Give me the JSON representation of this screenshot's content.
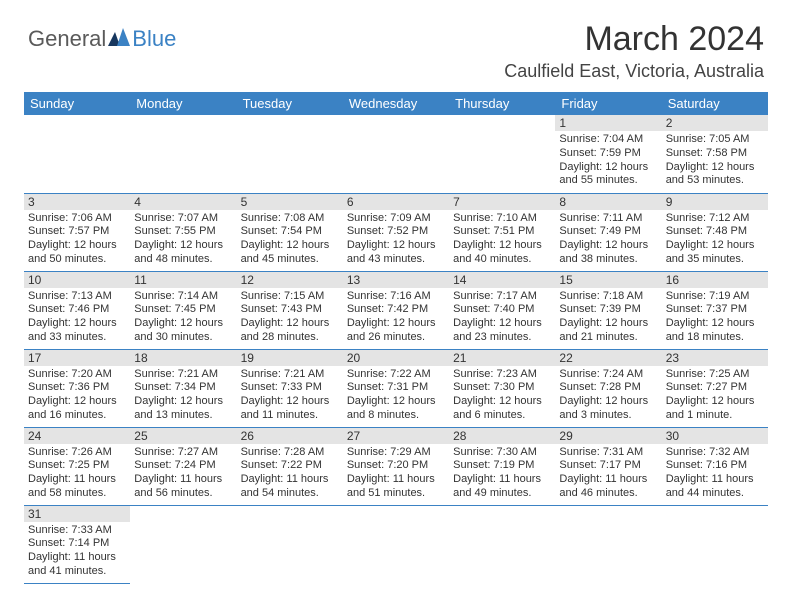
{
  "logo": {
    "part1": "General",
    "part2": "Blue"
  },
  "title": "March 2024",
  "location": "Caulfield East, Victoria, Australia",
  "colors": {
    "header_bg": "#3b82c4",
    "header_text": "#ffffff",
    "daynum_bg": "#e4e4e4",
    "row_border": "#3b82c4",
    "text": "#333333",
    "logo_general": "#5a5a5a",
    "logo_blue": "#3b82c4"
  },
  "day_headers": [
    "Sunday",
    "Monday",
    "Tuesday",
    "Wednesday",
    "Thursday",
    "Friday",
    "Saturday"
  ],
  "weeks": [
    [
      {
        "blank": true
      },
      {
        "blank": true
      },
      {
        "blank": true
      },
      {
        "blank": true
      },
      {
        "blank": true
      },
      {
        "num": "1",
        "sunrise": "Sunrise: 7:04 AM",
        "sunset": "Sunset: 7:59 PM",
        "daylight": "Daylight: 12 hours and 55 minutes."
      },
      {
        "num": "2",
        "sunrise": "Sunrise: 7:05 AM",
        "sunset": "Sunset: 7:58 PM",
        "daylight": "Daylight: 12 hours and 53 minutes."
      }
    ],
    [
      {
        "num": "3",
        "sunrise": "Sunrise: 7:06 AM",
        "sunset": "Sunset: 7:57 PM",
        "daylight": "Daylight: 12 hours and 50 minutes."
      },
      {
        "num": "4",
        "sunrise": "Sunrise: 7:07 AM",
        "sunset": "Sunset: 7:55 PM",
        "daylight": "Daylight: 12 hours and 48 minutes."
      },
      {
        "num": "5",
        "sunrise": "Sunrise: 7:08 AM",
        "sunset": "Sunset: 7:54 PM",
        "daylight": "Daylight: 12 hours and 45 minutes."
      },
      {
        "num": "6",
        "sunrise": "Sunrise: 7:09 AM",
        "sunset": "Sunset: 7:52 PM",
        "daylight": "Daylight: 12 hours and 43 minutes."
      },
      {
        "num": "7",
        "sunrise": "Sunrise: 7:10 AM",
        "sunset": "Sunset: 7:51 PM",
        "daylight": "Daylight: 12 hours and 40 minutes."
      },
      {
        "num": "8",
        "sunrise": "Sunrise: 7:11 AM",
        "sunset": "Sunset: 7:49 PM",
        "daylight": "Daylight: 12 hours and 38 minutes."
      },
      {
        "num": "9",
        "sunrise": "Sunrise: 7:12 AM",
        "sunset": "Sunset: 7:48 PM",
        "daylight": "Daylight: 12 hours and 35 minutes."
      }
    ],
    [
      {
        "num": "10",
        "sunrise": "Sunrise: 7:13 AM",
        "sunset": "Sunset: 7:46 PM",
        "daylight": "Daylight: 12 hours and 33 minutes."
      },
      {
        "num": "11",
        "sunrise": "Sunrise: 7:14 AM",
        "sunset": "Sunset: 7:45 PM",
        "daylight": "Daylight: 12 hours and 30 minutes."
      },
      {
        "num": "12",
        "sunrise": "Sunrise: 7:15 AM",
        "sunset": "Sunset: 7:43 PM",
        "daylight": "Daylight: 12 hours and 28 minutes."
      },
      {
        "num": "13",
        "sunrise": "Sunrise: 7:16 AM",
        "sunset": "Sunset: 7:42 PM",
        "daylight": "Daylight: 12 hours and 26 minutes."
      },
      {
        "num": "14",
        "sunrise": "Sunrise: 7:17 AM",
        "sunset": "Sunset: 7:40 PM",
        "daylight": "Daylight: 12 hours and 23 minutes."
      },
      {
        "num": "15",
        "sunrise": "Sunrise: 7:18 AM",
        "sunset": "Sunset: 7:39 PM",
        "daylight": "Daylight: 12 hours and 21 minutes."
      },
      {
        "num": "16",
        "sunrise": "Sunrise: 7:19 AM",
        "sunset": "Sunset: 7:37 PM",
        "daylight": "Daylight: 12 hours and 18 minutes."
      }
    ],
    [
      {
        "num": "17",
        "sunrise": "Sunrise: 7:20 AM",
        "sunset": "Sunset: 7:36 PM",
        "daylight": "Daylight: 12 hours and 16 minutes."
      },
      {
        "num": "18",
        "sunrise": "Sunrise: 7:21 AM",
        "sunset": "Sunset: 7:34 PM",
        "daylight": "Daylight: 12 hours and 13 minutes."
      },
      {
        "num": "19",
        "sunrise": "Sunrise: 7:21 AM",
        "sunset": "Sunset: 7:33 PM",
        "daylight": "Daylight: 12 hours and 11 minutes."
      },
      {
        "num": "20",
        "sunrise": "Sunrise: 7:22 AM",
        "sunset": "Sunset: 7:31 PM",
        "daylight": "Daylight: 12 hours and 8 minutes."
      },
      {
        "num": "21",
        "sunrise": "Sunrise: 7:23 AM",
        "sunset": "Sunset: 7:30 PM",
        "daylight": "Daylight: 12 hours and 6 minutes."
      },
      {
        "num": "22",
        "sunrise": "Sunrise: 7:24 AM",
        "sunset": "Sunset: 7:28 PM",
        "daylight": "Daylight: 12 hours and 3 minutes."
      },
      {
        "num": "23",
        "sunrise": "Sunrise: 7:25 AM",
        "sunset": "Sunset: 7:27 PM",
        "daylight": "Daylight: 12 hours and 1 minute."
      }
    ],
    [
      {
        "num": "24",
        "sunrise": "Sunrise: 7:26 AM",
        "sunset": "Sunset: 7:25 PM",
        "daylight": "Daylight: 11 hours and 58 minutes."
      },
      {
        "num": "25",
        "sunrise": "Sunrise: 7:27 AM",
        "sunset": "Sunset: 7:24 PM",
        "daylight": "Daylight: 11 hours and 56 minutes."
      },
      {
        "num": "26",
        "sunrise": "Sunrise: 7:28 AM",
        "sunset": "Sunset: 7:22 PM",
        "daylight": "Daylight: 11 hours and 54 minutes."
      },
      {
        "num": "27",
        "sunrise": "Sunrise: 7:29 AM",
        "sunset": "Sunset: 7:20 PM",
        "daylight": "Daylight: 11 hours and 51 minutes."
      },
      {
        "num": "28",
        "sunrise": "Sunrise: 7:30 AM",
        "sunset": "Sunset: 7:19 PM",
        "daylight": "Daylight: 11 hours and 49 minutes."
      },
      {
        "num": "29",
        "sunrise": "Sunrise: 7:31 AM",
        "sunset": "Sunset: 7:17 PM",
        "daylight": "Daylight: 11 hours and 46 minutes."
      },
      {
        "num": "30",
        "sunrise": "Sunrise: 7:32 AM",
        "sunset": "Sunset: 7:16 PM",
        "daylight": "Daylight: 11 hours and 44 minutes."
      }
    ],
    [
      {
        "num": "31",
        "sunrise": "Sunrise: 7:33 AM",
        "sunset": "Sunset: 7:14 PM",
        "daylight": "Daylight: 11 hours and 41 minutes."
      },
      {
        "blank": true
      },
      {
        "blank": true
      },
      {
        "blank": true
      },
      {
        "blank": true
      },
      {
        "blank": true
      },
      {
        "blank": true
      }
    ]
  ]
}
